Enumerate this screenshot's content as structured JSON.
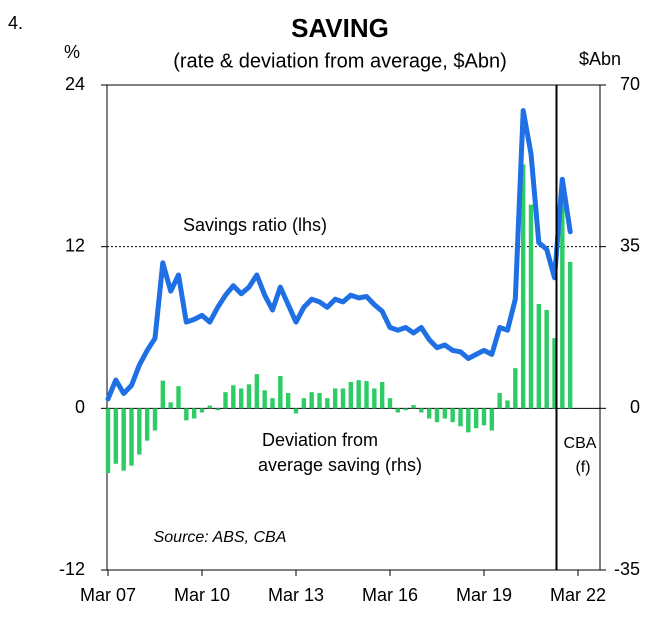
{
  "chart_data": {
    "type": "bar_line",
    "number": "4.",
    "title": "SAVING",
    "subtitle": "(rate & deviation from average, $Abn)",
    "y_label": "%",
    "y2_label": "$Abn",
    "categories": [
      "Mar 07",
      null,
      null,
      null,
      null,
      null,
      null,
      null,
      null,
      null,
      null,
      null,
      "Mar 10",
      null,
      null,
      null,
      null,
      null,
      null,
      null,
      null,
      null,
      null,
      null,
      "Mar 13",
      null,
      null,
      null,
      null,
      null,
      null,
      null,
      null,
      null,
      null,
      null,
      "Mar 16",
      null,
      null,
      null,
      null,
      null,
      null,
      null,
      null,
      null,
      null,
      null,
      "Mar 19",
      null,
      null,
      null,
      null,
      null,
      null,
      null,
      null,
      null,
      null,
      null,
      "Mar 22"
    ],
    "series": [
      {
        "name": "Deviation from average saving (rhs)",
        "kind": "bar",
        "axis": "y2",
        "color": "#2ecc66",
        "values": [
          -14,
          -12,
          -13.5,
          -12.4,
          -10,
          -7,
          -4.8,
          6,
          1.3,
          4.8,
          -2.6,
          -2.2,
          -0.9,
          0.6,
          -0.4,
          3.5,
          5,
          4.3,
          5.2,
          7.4,
          3.9,
          2.2,
          7,
          3.3,
          -1.1,
          2.2,
          3.5,
          3.3,
          2.2,
          4.3,
          4.3,
          5.7,
          6.1,
          5.9,
          4.3,
          5.7,
          2.2,
          -0.9,
          -0.4,
          0.7,
          -0.9,
          -2.2,
          -3,
          -2.2,
          -3,
          -3.9,
          -5.2,
          -4.3,
          -3.7,
          -4.8,
          3.3,
          1.7,
          8.7,
          52.8,
          44.1,
          22.6,
          21.3,
          15.2,
          45.2,
          31.7,
          null
        ]
      },
      {
        "name": "Savings ratio (lhs)",
        "kind": "line",
        "axis": "y",
        "color": "#1f6fe5",
        "values": [
          0.7,
          2.1,
          1.1,
          1.7,
          3.2,
          4.3,
          5.2,
          10.8,
          8.7,
          9.9,
          6.4,
          6.6,
          6.9,
          6.4,
          7.5,
          8.4,
          9.1,
          8.5,
          9,
          9.9,
          8.4,
          7.3,
          9,
          7.7,
          6.4,
          7.5,
          8.1,
          7.9,
          7.5,
          8.1,
          7.9,
          8.4,
          8.2,
          8.3,
          7.7,
          7.2,
          6,
          5.8,
          6,
          5.6,
          6,
          5.1,
          4.5,
          4.7,
          4.3,
          4.2,
          3.7,
          4,
          4.3,
          4,
          6,
          5.8,
          8.1,
          22.1,
          18.9,
          12.3,
          11.8,
          9.7,
          17,
          13.1,
          null
        ]
      }
    ],
    "ylim": [
      -12,
      24
    ],
    "yticks": [
      -12,
      0,
      12,
      24
    ],
    "y2lim": [
      -35,
      70
    ],
    "y2ticks": [
      -35,
      0,
      35,
      70
    ],
    "reference_line": 12,
    "annotations": [
      {
        "text": "Savings ratio (lhs)",
        "color": "#1a8fd6"
      },
      {
        "text": "Deviation from",
        "color": "#2ecc66"
      },
      {
        "text": "average saving (rhs)",
        "color": "#2ecc66"
      },
      {
        "text": "Source: ABS, CBA",
        "color": "#000000"
      },
      {
        "text": "CBA",
        "color": "#000000"
      },
      {
        "text": "(f)",
        "color": "#000000"
      }
    ]
  }
}
